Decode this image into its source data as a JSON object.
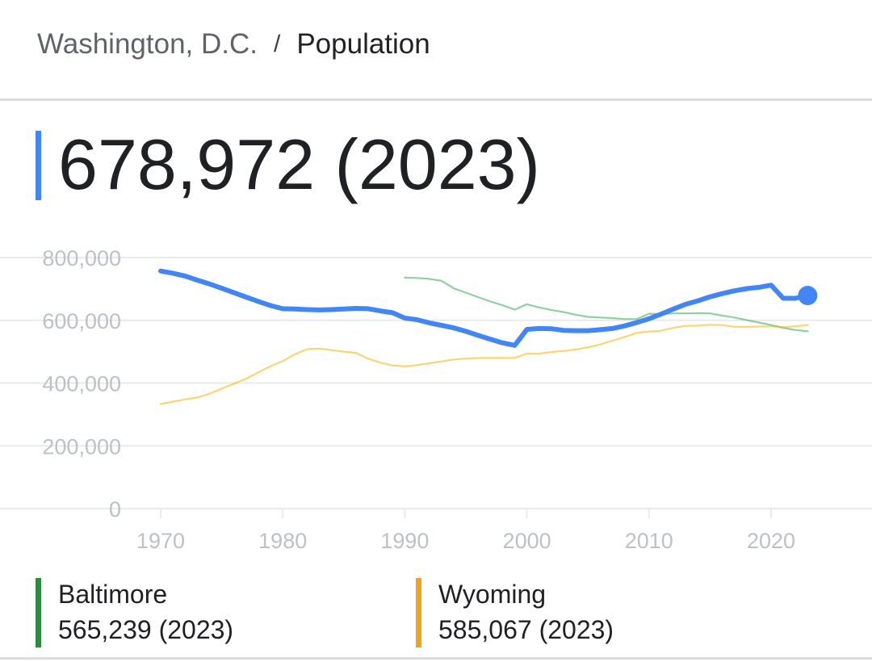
{
  "breadcrumb": {
    "parent": "Washington, D.C.",
    "separator": "/",
    "current": "Population"
  },
  "headline": {
    "value_text": "678,972 (2023)"
  },
  "colors": {
    "primary": "#4285f4",
    "baltimore": "#34a853",
    "wyoming": "#f4b400",
    "grid": "#e8eaed",
    "tick_text": "#bdc1c6"
  },
  "legend": [
    {
      "name": "Baltimore",
      "value_text": "565,239 (2023)",
      "color": "#2e8b3e"
    },
    {
      "name": "Wyoming",
      "value_text": "585,067 (2023)",
      "color": "#f0a31c"
    }
  ],
  "chart_data": {
    "type": "line",
    "xlim": [
      1966,
      2028
    ],
    "ylim": [
      0,
      800000
    ],
    "yticks": [
      0,
      200000,
      400000,
      600000,
      800000
    ],
    "ytick_labels": [
      "0",
      "200,000",
      "400,000",
      "600,000",
      "800,000"
    ],
    "xticks": [
      1970,
      1980,
      1990,
      2000,
      2010,
      2020
    ],
    "xtick_labels": [
      "1970",
      "1980",
      "1990",
      "2000",
      "2010",
      "2020"
    ],
    "grid": true,
    "series": [
      {
        "name": "Washington, D.C.",
        "color": "#4285f4",
        "x": [
          1970,
          1971,
          1972,
          1973,
          1974,
          1975,
          1976,
          1977,
          1978,
          1979,
          1980,
          1981,
          1982,
          1983,
          1984,
          1985,
          1986,
          1987,
          1988,
          1989,
          1990,
          1991,
          1992,
          1993,
          1994,
          1995,
          1996,
          1997,
          1998,
          1999,
          2000,
          2001,
          2002,
          2003,
          2004,
          2005,
          2006,
          2007,
          2008,
          2009,
          2010,
          2011,
          2012,
          2013,
          2014,
          2015,
          2016,
          2017,
          2018,
          2019,
          2020,
          2021,
          2022,
          2023
        ],
        "values": [
          757000,
          750000,
          741000,
          728000,
          716000,
          702000,
          688000,
          674000,
          660000,
          647000,
          637000,
          636000,
          634000,
          633000,
          634000,
          636000,
          638000,
          637000,
          630000,
          624000,
          607000,
          602000,
          592000,
          584000,
          576000,
          565000,
          552000,
          540000,
          528000,
          520000,
          571000,
          574000,
          573000,
          568000,
          567000,
          567000,
          570000,
          574000,
          582000,
          593000,
          605000,
          620000,
          636000,
          651000,
          662000,
          675000,
          685000,
          694000,
          701000,
          705000,
          712000,
          670000,
          670000,
          678972
        ],
        "highlight_last": true
      },
      {
        "name": "Baltimore",
        "color": "#34a853",
        "x": [
          1990,
          1991,
          1992,
          1993,
          1994,
          1995,
          1996,
          1997,
          1998,
          1999,
          2000,
          2001,
          2002,
          2003,
          2004,
          2005,
          2006,
          2007,
          2008,
          2009,
          2010,
          2011,
          2012,
          2013,
          2014,
          2015,
          2016,
          2017,
          2018,
          2019,
          2020,
          2021,
          2022,
          2023
        ],
        "values": [
          736000,
          735000,
          732000,
          726000,
          702000,
          688000,
          674000,
          660000,
          648000,
          634000,
          651000,
          641000,
          633000,
          626000,
          618000,
          611000,
          609000,
          607000,
          604000,
          604000,
          621000,
          620000,
          622000,
          622000,
          623000,
          622000,
          615000,
          609000,
          601000,
          593000,
          585000,
          576000,
          569000,
          565239
        ]
      },
      {
        "name": "Wyoming",
        "color": "#f4b400",
        "x": [
          1970,
          1971,
          1972,
          1973,
          1974,
          1975,
          1976,
          1977,
          1978,
          1979,
          1980,
          1981,
          1982,
          1983,
          1984,
          1985,
          1986,
          1987,
          1988,
          1989,
          1990,
          1991,
          1992,
          1993,
          1994,
          1995,
          1996,
          1997,
          1998,
          1999,
          2000,
          2001,
          2002,
          2003,
          2004,
          2005,
          2006,
          2007,
          2008,
          2009,
          2010,
          2011,
          2012,
          2013,
          2014,
          2015,
          2016,
          2017,
          2018,
          2019,
          2020,
          2021,
          2022,
          2023
        ],
        "values": [
          333000,
          341000,
          348000,
          354000,
          366000,
          382000,
          398000,
          414000,
          434000,
          454000,
          470000,
          492000,
          508000,
          510000,
          505000,
          500000,
          496000,
          478000,
          465000,
          456000,
          453000,
          457000,
          463000,
          469000,
          475000,
          478000,
          480000,
          480000,
          480000,
          480000,
          494000,
          494000,
          499000,
          502000,
          507000,
          514000,
          523000,
          535000,
          547000,
          560000,
          564000,
          567000,
          576000,
          582000,
          583000,
          586000,
          585000,
          579000,
          579000,
          580000,
          581000,
          578000,
          581000,
          585067
        ]
      }
    ]
  }
}
